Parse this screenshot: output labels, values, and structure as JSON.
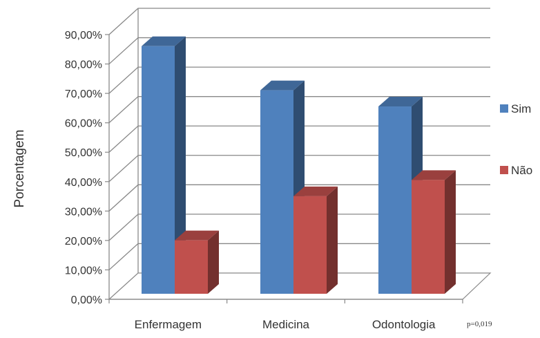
{
  "chart_data": {
    "type": "bar",
    "ylabel": "Porcentagem",
    "categories": [
      "Enfermagem",
      "Medicina",
      "Odontologia"
    ],
    "series": [
      {
        "name": "Sim",
        "values": [
          83.0,
          68.0,
          62.5
        ],
        "color": "#4F81BD"
      },
      {
        "name": "Não",
        "values": [
          17.0,
          32.0,
          37.5
        ],
        "color": "#C0504D"
      }
    ],
    "ylim": [
      0,
      90
    ],
    "yticks": [
      "0,00%",
      "10,00%",
      "20,00%",
      "30,00%",
      "40,00%",
      "50,00%",
      "60,00%",
      "70,00%",
      "80,00%",
      "90,00%"
    ],
    "grid": true,
    "legend_position": "right",
    "annotation": "p=0,019",
    "style": "3d-clustered-column"
  }
}
